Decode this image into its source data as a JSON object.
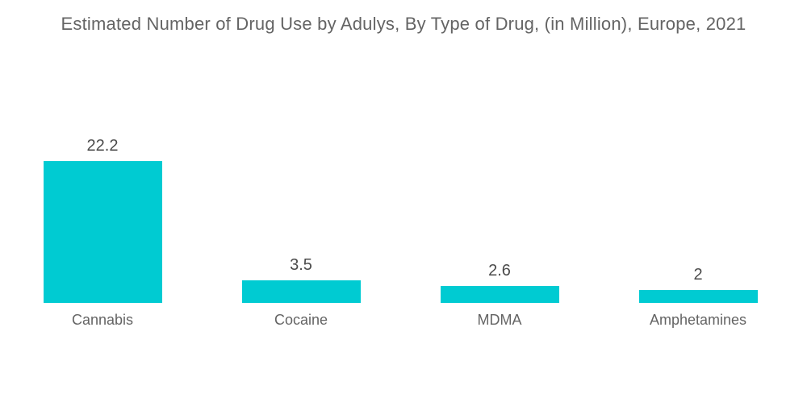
{
  "title": "Estimated Number of Drug Use by Adulys, By Type of Drug, (in Million), Europe, 2021",
  "colors": {
    "background": "#ffffff",
    "bar": "#00cbd2",
    "title_text": "#646464",
    "value_text": "#4b4b4b",
    "category_text": "#646464"
  },
  "chart_data": {
    "type": "bar",
    "title": "Estimated Number of Drug Use by Adulys, By Type of Drug, (in Million), Europe, 2021",
    "categories": [
      "Cannabis",
      "Cocaine",
      "MDMA",
      "Amphetamines"
    ],
    "values": [
      22.2,
      3.5,
      2.6,
      2
    ],
    "value_labels": [
      "22.2",
      "3.5",
      "2.6",
      "2"
    ],
    "xlabel": "",
    "ylabel": "",
    "ylim": [
      0,
      22.2
    ],
    "grid": false,
    "legend": false,
    "axis_lines": false,
    "bar_color": "#00cbd2"
  }
}
